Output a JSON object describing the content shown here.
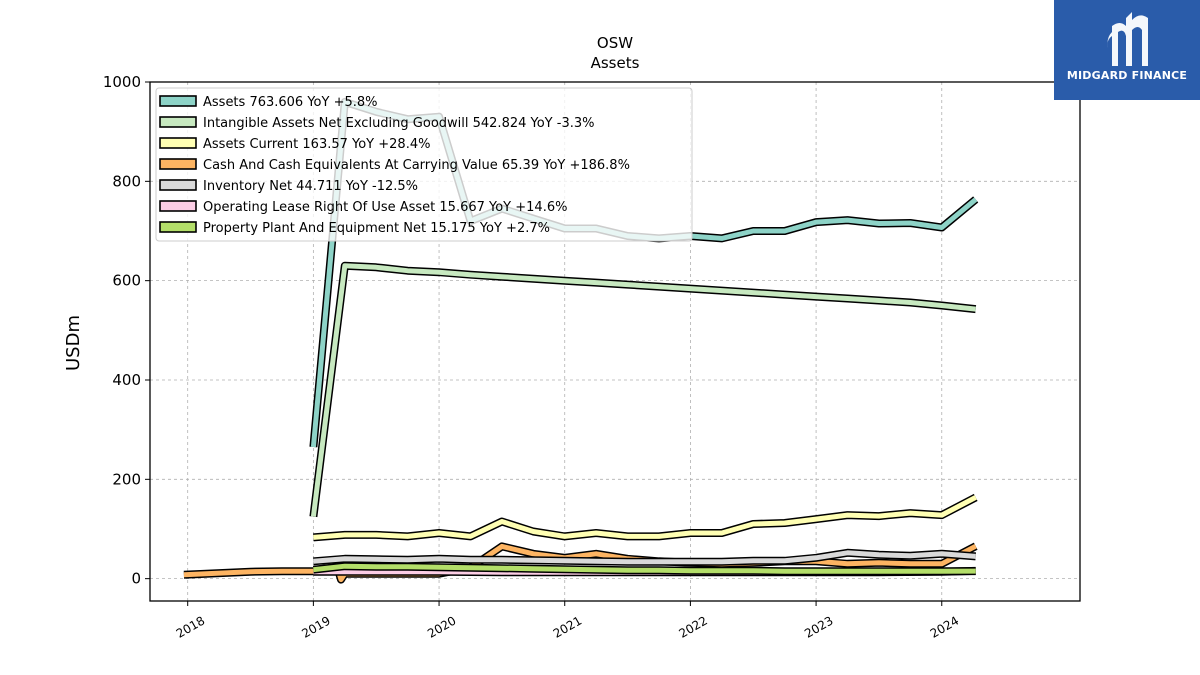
{
  "brand": {
    "name": "MIDGARD FINANCE",
    "bg_color": "#2a5caa"
  },
  "chart_data": {
    "type": "line",
    "title": "OSW",
    "subtitle": "Assets",
    "ylabel": "USDm",
    "xlabel": "",
    "xlim": [
      2017.7,
      2025.1
    ],
    "ylim": [
      -45,
      1000
    ],
    "yticks": [
      0,
      200,
      400,
      600,
      800,
      1000
    ],
    "xticks": [
      2018,
      2019,
      2020,
      2021,
      2022,
      2023,
      2024
    ],
    "grid": true,
    "legend_position": "top-left",
    "series": [
      {
        "name": "Assets  763.606 YoY +5.8%",
        "color": "#8dd3c7",
        "x": [
          2019.0,
          2019.25,
          2019.5,
          2019.75,
          2020.0,
          2020.25,
          2020.5,
          2020.75,
          2021.0,
          2021.25,
          2021.5,
          2021.75,
          2022.0,
          2022.25,
          2022.5,
          2022.75,
          2023.0,
          2023.25,
          2023.5,
          2023.75,
          2024.0,
          2024.27
        ],
        "values": [
          265,
          960,
          940,
          925,
          930,
          720,
          745,
          725,
          705,
          705,
          690,
          685,
          690,
          685,
          700,
          700,
          718,
          722,
          715,
          716,
          707,
          763.606
        ]
      },
      {
        "name": "Intangible Assets Net Excluding Goodwill  542.824 YoY -3.3%",
        "color": "#c7e9c0",
        "x": [
          2019.0,
          2019.25,
          2019.5,
          2019.75,
          2020.0,
          2020.25,
          2020.5,
          2020.75,
          2021.0,
          2021.25,
          2021.5,
          2021.75,
          2022.0,
          2022.25,
          2022.5,
          2022.75,
          2023.0,
          2023.25,
          2023.5,
          2023.75,
          2024.0,
          2024.27
        ],
        "values": [
          125,
          630,
          627,
          620,
          617,
          612,
          608,
          604,
          600,
          596,
          592,
          588,
          584,
          580,
          576,
          572,
          568,
          564,
          560,
          556,
          550,
          542.824
        ]
      },
      {
        "name": "Assets Current  163.57 YoY +28.4%",
        "color": "#ffffb3",
        "x": [
          2019.0,
          2019.25,
          2019.5,
          2019.75,
          2020.0,
          2020.25,
          2020.5,
          2020.75,
          2021.0,
          2021.25,
          2021.5,
          2021.75,
          2022.0,
          2022.25,
          2022.5,
          2022.75,
          2023.0,
          2023.25,
          2023.5,
          2023.75,
          2024.0,
          2024.27
        ],
        "values": [
          83,
          88,
          88,
          85,
          92,
          85,
          115,
          95,
          85,
          92,
          85,
          85,
          92,
          92,
          110,
          112,
          120,
          128,
          126,
          132,
          128,
          163.57
        ]
      },
      {
        "name": "Cash And Cash Equivalents At Carrying Value  65.39 YoY +186.8%",
        "color": "#fdb462",
        "x": [
          2017.97,
          2018.5,
          2018.75,
          2019.0,
          2019.2,
          2019.22,
          2019.25,
          2019.5,
          2019.75,
          2020.0,
          2020.25,
          2020.5,
          2020.75,
          2021.0,
          2021.25,
          2021.5,
          2021.75,
          2022.0,
          2022.25,
          2022.5,
          2022.75,
          2023.0,
          2023.25,
          2023.5,
          2023.75,
          2024.0,
          2024.27
        ],
        "values": [
          8,
          14,
          15,
          15,
          15,
          -2,
          10,
          10,
          10,
          10,
          22,
          65,
          50,
          42,
          50,
          40,
          35,
          32,
          30,
          32,
          35,
          35,
          30,
          32,
          30,
          30,
          65.39
        ]
      },
      {
        "name": "Inventory Net  44.711 YoY -12.5%",
        "color": "#d9d9d9",
        "x": [
          2019.0,
          2019.25,
          2019.5,
          2019.75,
          2020.0,
          2020.25,
          2020.5,
          2020.75,
          2021.0,
          2021.25,
          2021.5,
          2021.75,
          2022.0,
          2022.25,
          2022.5,
          2022.75,
          2023.0,
          2023.25,
          2023.5,
          2023.75,
          2024.0,
          2024.27
        ],
        "values": [
          35,
          40,
          39,
          38,
          40,
          38,
          38,
          37,
          36,
          35,
          34,
          34,
          34,
          34,
          36,
          36,
          42,
          52,
          48,
          46,
          50,
          44.711
        ]
      },
      {
        "name": "Operating Lease Right Of Use Asset  15.667 YoY +14.6%",
        "color": "#fccde5",
        "x": [
          2019.0,
          2019.5,
          2020.0,
          2020.5,
          2021.0,
          2021.5,
          2022.0,
          2022.5,
          2023.0,
          2023.5,
          2024.0,
          2024.27
        ],
        "values": [
          14,
          14,
          14,
          13,
          13,
          13,
          13,
          13,
          13,
          13,
          14,
          15.667
        ]
      },
      {
        "name": "Property Plant And Equipment Net  15.175 YoY +2.7%",
        "color": "#b3de69",
        "x": [
          2019.0,
          2019.25,
          2019.5,
          2019.75,
          2020.0,
          2020.25,
          2020.5,
          2020.75,
          2021.0,
          2021.25,
          2021.5,
          2021.75,
          2022.0,
          2022.25,
          2022.5,
          2022.75,
          2023.0,
          2023.25,
          2023.5,
          2023.75,
          2024.0,
          2024.27
        ],
        "values": [
          18,
          25,
          24,
          24,
          23,
          22,
          21,
          20,
          19,
          18,
          17,
          17,
          16,
          16,
          16,
          15,
          15,
          15,
          15,
          15,
          15,
          15.175
        ]
      }
    ]
  }
}
